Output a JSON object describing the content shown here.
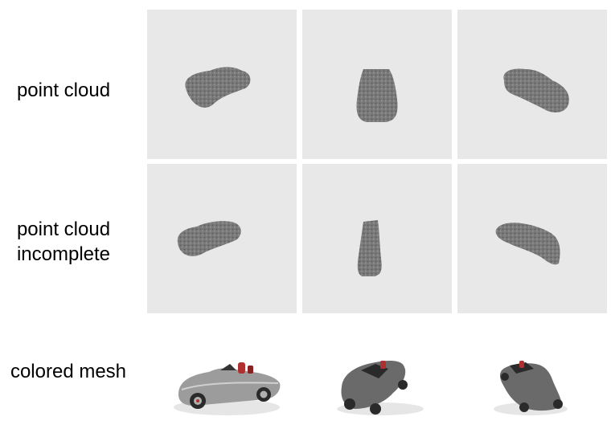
{
  "rows": [
    {
      "label_lines": [
        "point cloud"
      ]
    },
    {
      "label_lines": [
        "point cloud",
        "incomplete"
      ]
    },
    {
      "label_lines": [
        "colored mesh"
      ]
    }
  ],
  "colors": {
    "panel_background": "#e8e8e8",
    "point_cloud": "#7a7a7a",
    "mesh_body": "#9a9a9a",
    "mesh_accent": "#b03030"
  },
  "views": [
    "side-left",
    "rear",
    "side-right"
  ]
}
